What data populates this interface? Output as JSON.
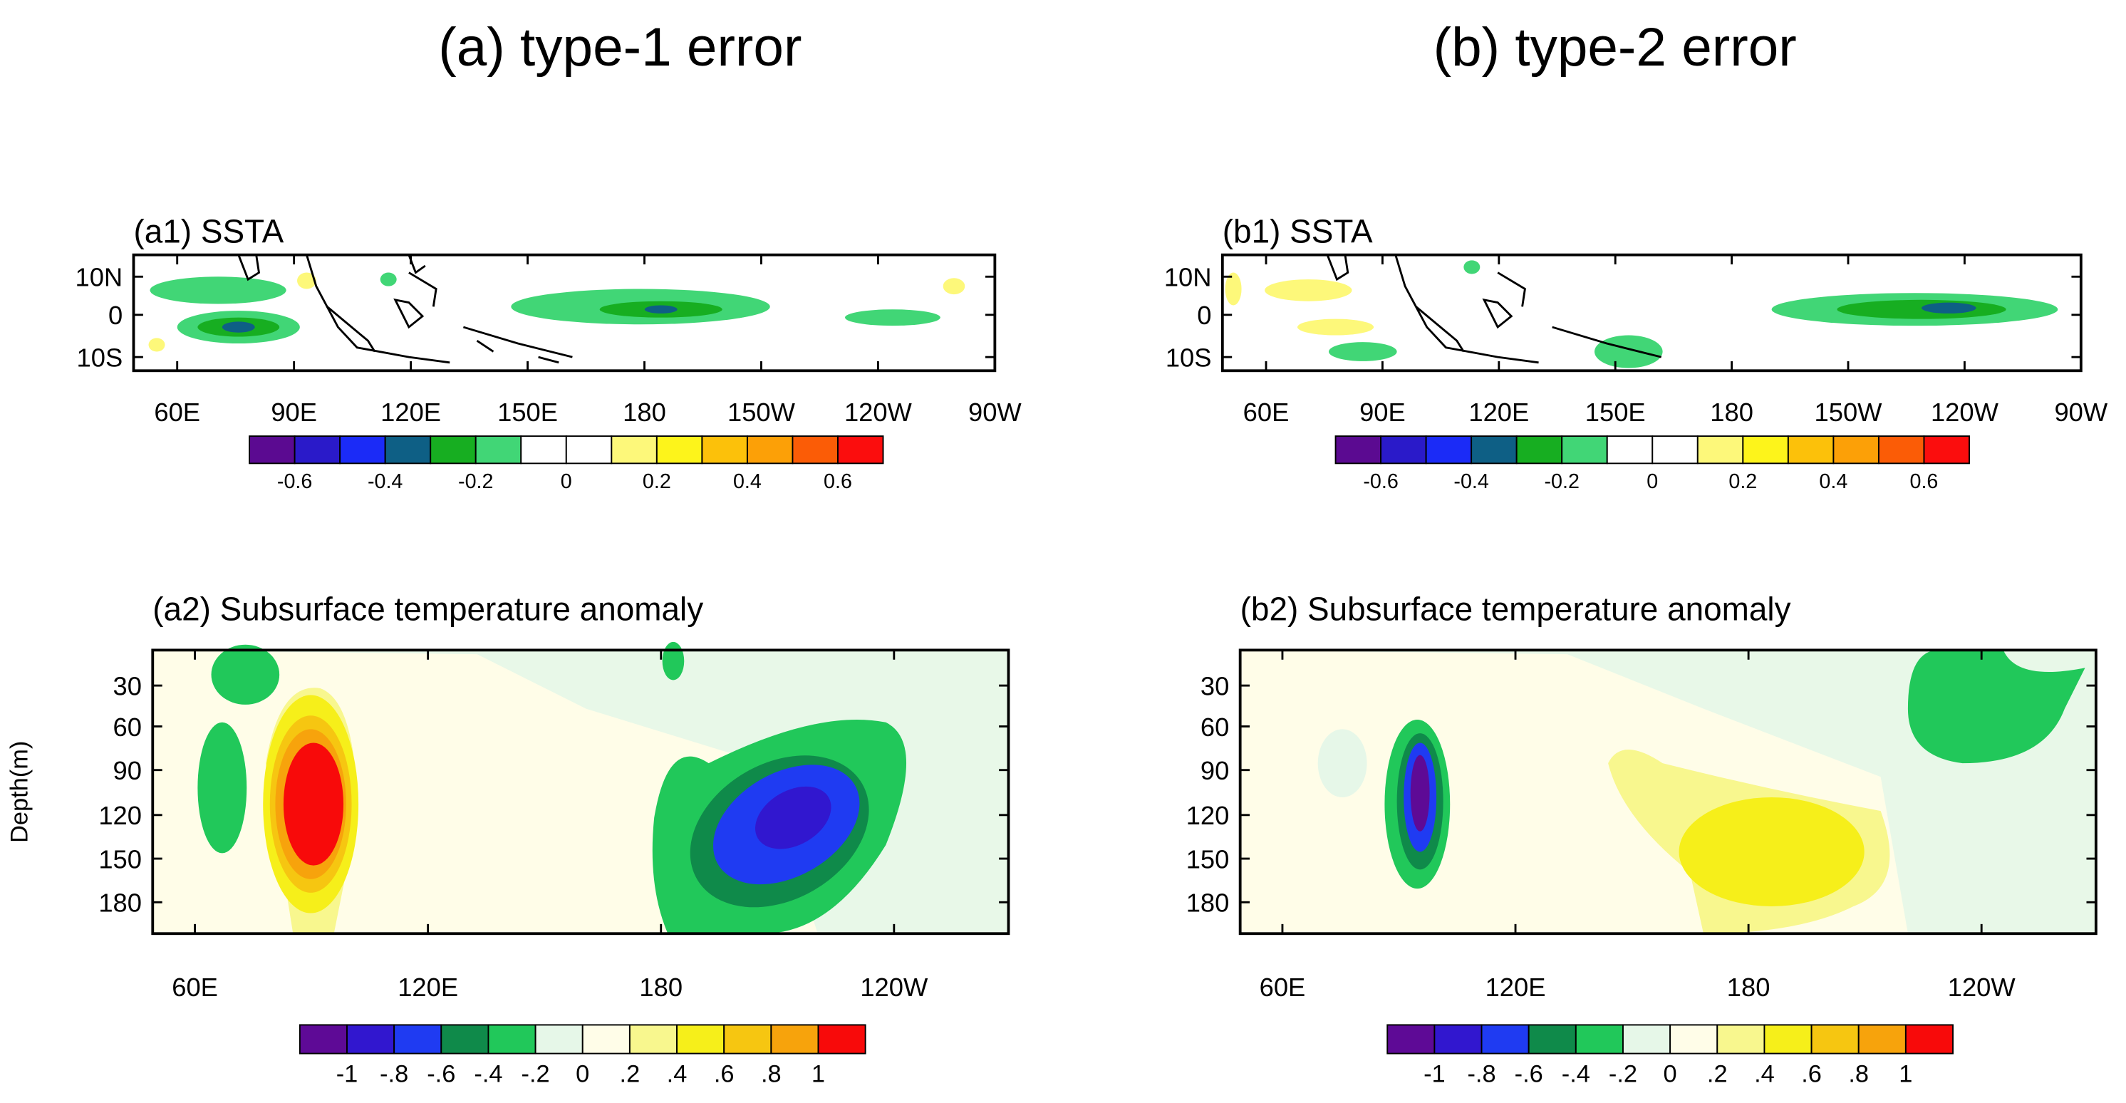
{
  "titles": [
    "(a) type-1 error",
    "(b) type-2 error"
  ],
  "panels": [
    {
      "title": "(a1) SSTA",
      "yticks": [
        "10N",
        "0",
        "10S"
      ],
      "xticks": [
        "60E",
        "90E",
        "120E",
        "150E",
        "180",
        "150W",
        "120W",
        "90W"
      ],
      "colorbar": {
        "colors": [
          "#5b0a91",
          "#2a1ac9",
          "#1b2bf7",
          "#0e5f85",
          "#17ae21",
          "#41d676",
          "#ffffff",
          "#ffffff",
          "#fdf87a",
          "#fdf41b",
          "#fcc10a",
          "#fca007",
          "#fb5c06",
          "#fb0d0d"
        ],
        "labels": [
          "-0.6",
          "-0.4",
          "-0.2",
          "0",
          "0.2",
          "0.4",
          "0.6"
        ]
      }
    },
    {
      "title": "(b1) SSTA",
      "yticks": [
        "10N",
        "0",
        "10S"
      ],
      "xticks": [
        "60E",
        "90E",
        "120E",
        "150E",
        "180",
        "150W",
        "120W",
        "90W"
      ],
      "colorbar": {
        "colors": [
          "#5b0a91",
          "#2a1ac9",
          "#1b2bf7",
          "#0e5f85",
          "#17ae21",
          "#41d676",
          "#ffffff",
          "#ffffff",
          "#fdf87a",
          "#fdf41b",
          "#fcc10a",
          "#fca007",
          "#fb5c06",
          "#fb0d0d"
        ],
        "labels": [
          "-0.6",
          "-0.4",
          "-0.2",
          "0",
          "0.2",
          "0.4",
          "0.6"
        ]
      }
    },
    {
      "title": "(a2) Subsurface temperature anomaly",
      "ylabel": "Depth(m)",
      "yticks": [
        "30",
        "60",
        "90",
        "120",
        "150",
        "180"
      ],
      "xticks": [
        "60E",
        "120E",
        "180",
        "120W"
      ],
      "colorbar": {
        "colors": [
          "#5e0a96",
          "#3117cf",
          "#1f3bf2",
          "#0f8a4a",
          "#21c85a",
          "#e6f7e8",
          "#fffde8",
          "#f8f78e",
          "#f6ef1a",
          "#f6c611",
          "#f7a30c",
          "#f80a0a"
        ],
        "labels": [
          "-1",
          "-.8",
          "-.6",
          "-.4",
          "-.2",
          "0",
          ".2",
          ".4",
          ".6",
          ".8",
          "1"
        ]
      }
    },
    {
      "title": "(b2) Subsurface temperature anomaly",
      "yticks": [
        "30",
        "60",
        "90",
        "120",
        "150",
        "180"
      ],
      "xticks": [
        "60E",
        "120E",
        "180",
        "120W"
      ],
      "colorbar": {
        "colors": [
          "#5e0a96",
          "#3117cf",
          "#1f3bf2",
          "#0f8a4a",
          "#21c85a",
          "#e6f7e8",
          "#fffde8",
          "#f8f78e",
          "#f6ef1a",
          "#f6c611",
          "#f7a30c",
          "#f80a0a"
        ],
        "labels": [
          "-1",
          "-.8",
          "-.6",
          "-.4",
          "-.2",
          "0",
          ".2",
          ".4",
          ".6",
          ".8",
          "1"
        ]
      }
    }
  ]
}
